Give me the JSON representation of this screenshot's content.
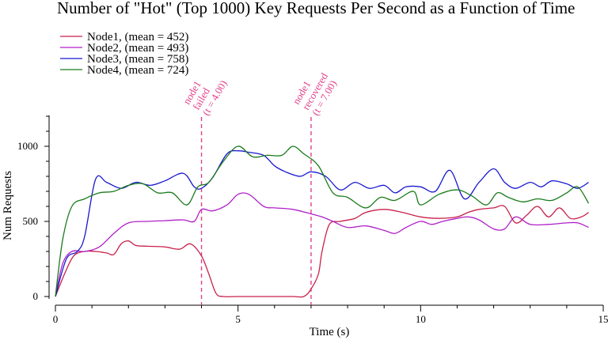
{
  "chart_data": {
    "type": "line",
    "title": "Number of \"Hot\" (Top 1000) Key Requests Per Second as a Function of Time",
    "xlabel": "Time (s)",
    "ylabel": "Num Requests",
    "xlim": [
      0,
      15
    ],
    "ylim": [
      0,
      1200
    ],
    "xticks": [
      0,
      5,
      10,
      15
    ],
    "yticks": [
      0,
      500,
      1000
    ],
    "grid": false,
    "legend_position": "top-left",
    "series": [
      {
        "name": "Node1, (mean = 452)",
        "color": "#c8204a",
        "x": [
          0,
          0.25,
          0.5,
          0.8,
          1.1,
          1.4,
          1.6,
          1.8,
          2.0,
          2.2,
          2.5,
          3.0,
          3.4,
          3.7,
          4.0,
          4.2,
          4.4,
          4.6,
          5.0,
          5.5,
          6.0,
          6.5,
          6.8,
          7.0,
          7.2,
          7.3,
          7.5,
          7.8,
          8.2,
          8.5,
          9.0,
          9.5,
          10.0,
          10.5,
          11.0,
          11.3,
          11.6,
          12.0,
          12.3,
          12.6,
          12.9,
          13.2,
          13.5,
          13.8,
          14.1,
          14.4,
          14.6
        ],
        "y": [
          0,
          150,
          270,
          300,
          300,
          290,
          280,
          350,
          370,
          340,
          335,
          330,
          315,
          350,
          270,
          150,
          20,
          0,
          0,
          0,
          0,
          0,
          0,
          50,
          150,
          300,
          480,
          500,
          520,
          560,
          580,
          560,
          530,
          520,
          530,
          560,
          580,
          590,
          600,
          490,
          540,
          600,
          530,
          590,
          520,
          530,
          560
        ]
      },
      {
        "name": "Node2, (mean = 493)",
        "color": "#b020c8",
        "x": [
          0,
          0.2,
          0.45,
          0.8,
          1.2,
          1.6,
          2.0,
          2.5,
          3.0,
          3.5,
          3.8,
          4.0,
          4.3,
          4.7,
          5.0,
          5.3,
          5.7,
          6.0,
          6.5,
          7.0,
          7.3,
          7.6,
          8.0,
          8.5,
          9.0,
          9.3,
          9.6,
          10.0,
          10.3,
          10.6,
          11.0,
          11.3,
          11.6,
          12.0,
          12.3,
          12.6,
          13.0,
          13.5,
          14.0,
          14.3,
          14.6
        ],
        "y": [
          0,
          220,
          300,
          300,
          330,
          420,
          490,
          500,
          505,
          510,
          500,
          580,
          570,
          610,
          680,
          680,
          600,
          590,
          580,
          550,
          530,
          500,
          460,
          470,
          440,
          420,
          460,
          500,
          480,
          500,
          520,
          530,
          510,
          450,
          450,
          530,
          480,
          480,
          490,
          490,
          460
        ]
      },
      {
        "name": "Node3, (mean = 758)",
        "color": "#1818d0",
        "x": [
          0,
          0.3,
          0.6,
          0.8,
          1.1,
          1.4,
          1.8,
          2.2,
          2.6,
          3.0,
          3.5,
          3.8,
          4.0,
          4.3,
          4.7,
          5.0,
          5.3,
          5.7,
          6.0,
          6.3,
          6.7,
          7.0,
          7.4,
          7.8,
          8.2,
          8.6,
          9.0,
          9.3,
          9.6,
          10.0,
          10.4,
          10.8,
          11.2,
          11.6,
          12.0,
          12.3,
          12.6,
          13.0,
          13.3,
          13.6,
          14.0,
          14.3,
          14.6
        ],
        "y": [
          0,
          250,
          300,
          400,
          780,
          760,
          720,
          760,
          740,
          770,
          820,
          730,
          720,
          790,
          950,
          970,
          960,
          940,
          870,
          830,
          800,
          830,
          800,
          710,
          760,
          720,
          740,
          690,
          730,
          730,
          700,
          840,
          650,
          760,
          850,
          760,
          720,
          760,
          730,
          770,
          750,
          720,
          760
        ]
      },
      {
        "name": "Node4, (mean = 724)",
        "color": "#1a7a1a",
        "x": [
          0,
          0.2,
          0.45,
          0.8,
          1.2,
          1.6,
          2.0,
          2.4,
          2.8,
          3.2,
          3.6,
          3.9,
          4.2,
          4.6,
          5.0,
          5.4,
          5.8,
          6.2,
          6.5,
          6.8,
          7.2,
          7.6,
          8.0,
          8.5,
          8.9,
          9.3,
          9.8,
          10.0,
          10.5,
          11.0,
          11.4,
          11.8,
          12.1,
          12.4,
          12.8,
          13.2,
          13.6,
          14.0,
          14.3,
          14.6
        ],
        "y": [
          0,
          380,
          600,
          650,
          690,
          700,
          740,
          750,
          690,
          690,
          610,
          730,
          760,
          900,
          1000,
          930,
          940,
          940,
          1000,
          950,
          870,
          690,
          660,
          590,
          660,
          640,
          700,
          610,
          680,
          710,
          670,
          610,
          690,
          660,
          630,
          650,
          640,
          690,
          730,
          620
        ]
      }
    ],
    "annotations": [
      {
        "x": 4.0,
        "lines": [
          "node1",
          "failed",
          "(t = 4.00)"
        ],
        "color": "#e0408a"
      },
      {
        "x": 7.0,
        "lines": [
          "node1",
          "recovered",
          "(t = 7.00)"
        ],
        "color": "#e0408a"
      }
    ]
  }
}
